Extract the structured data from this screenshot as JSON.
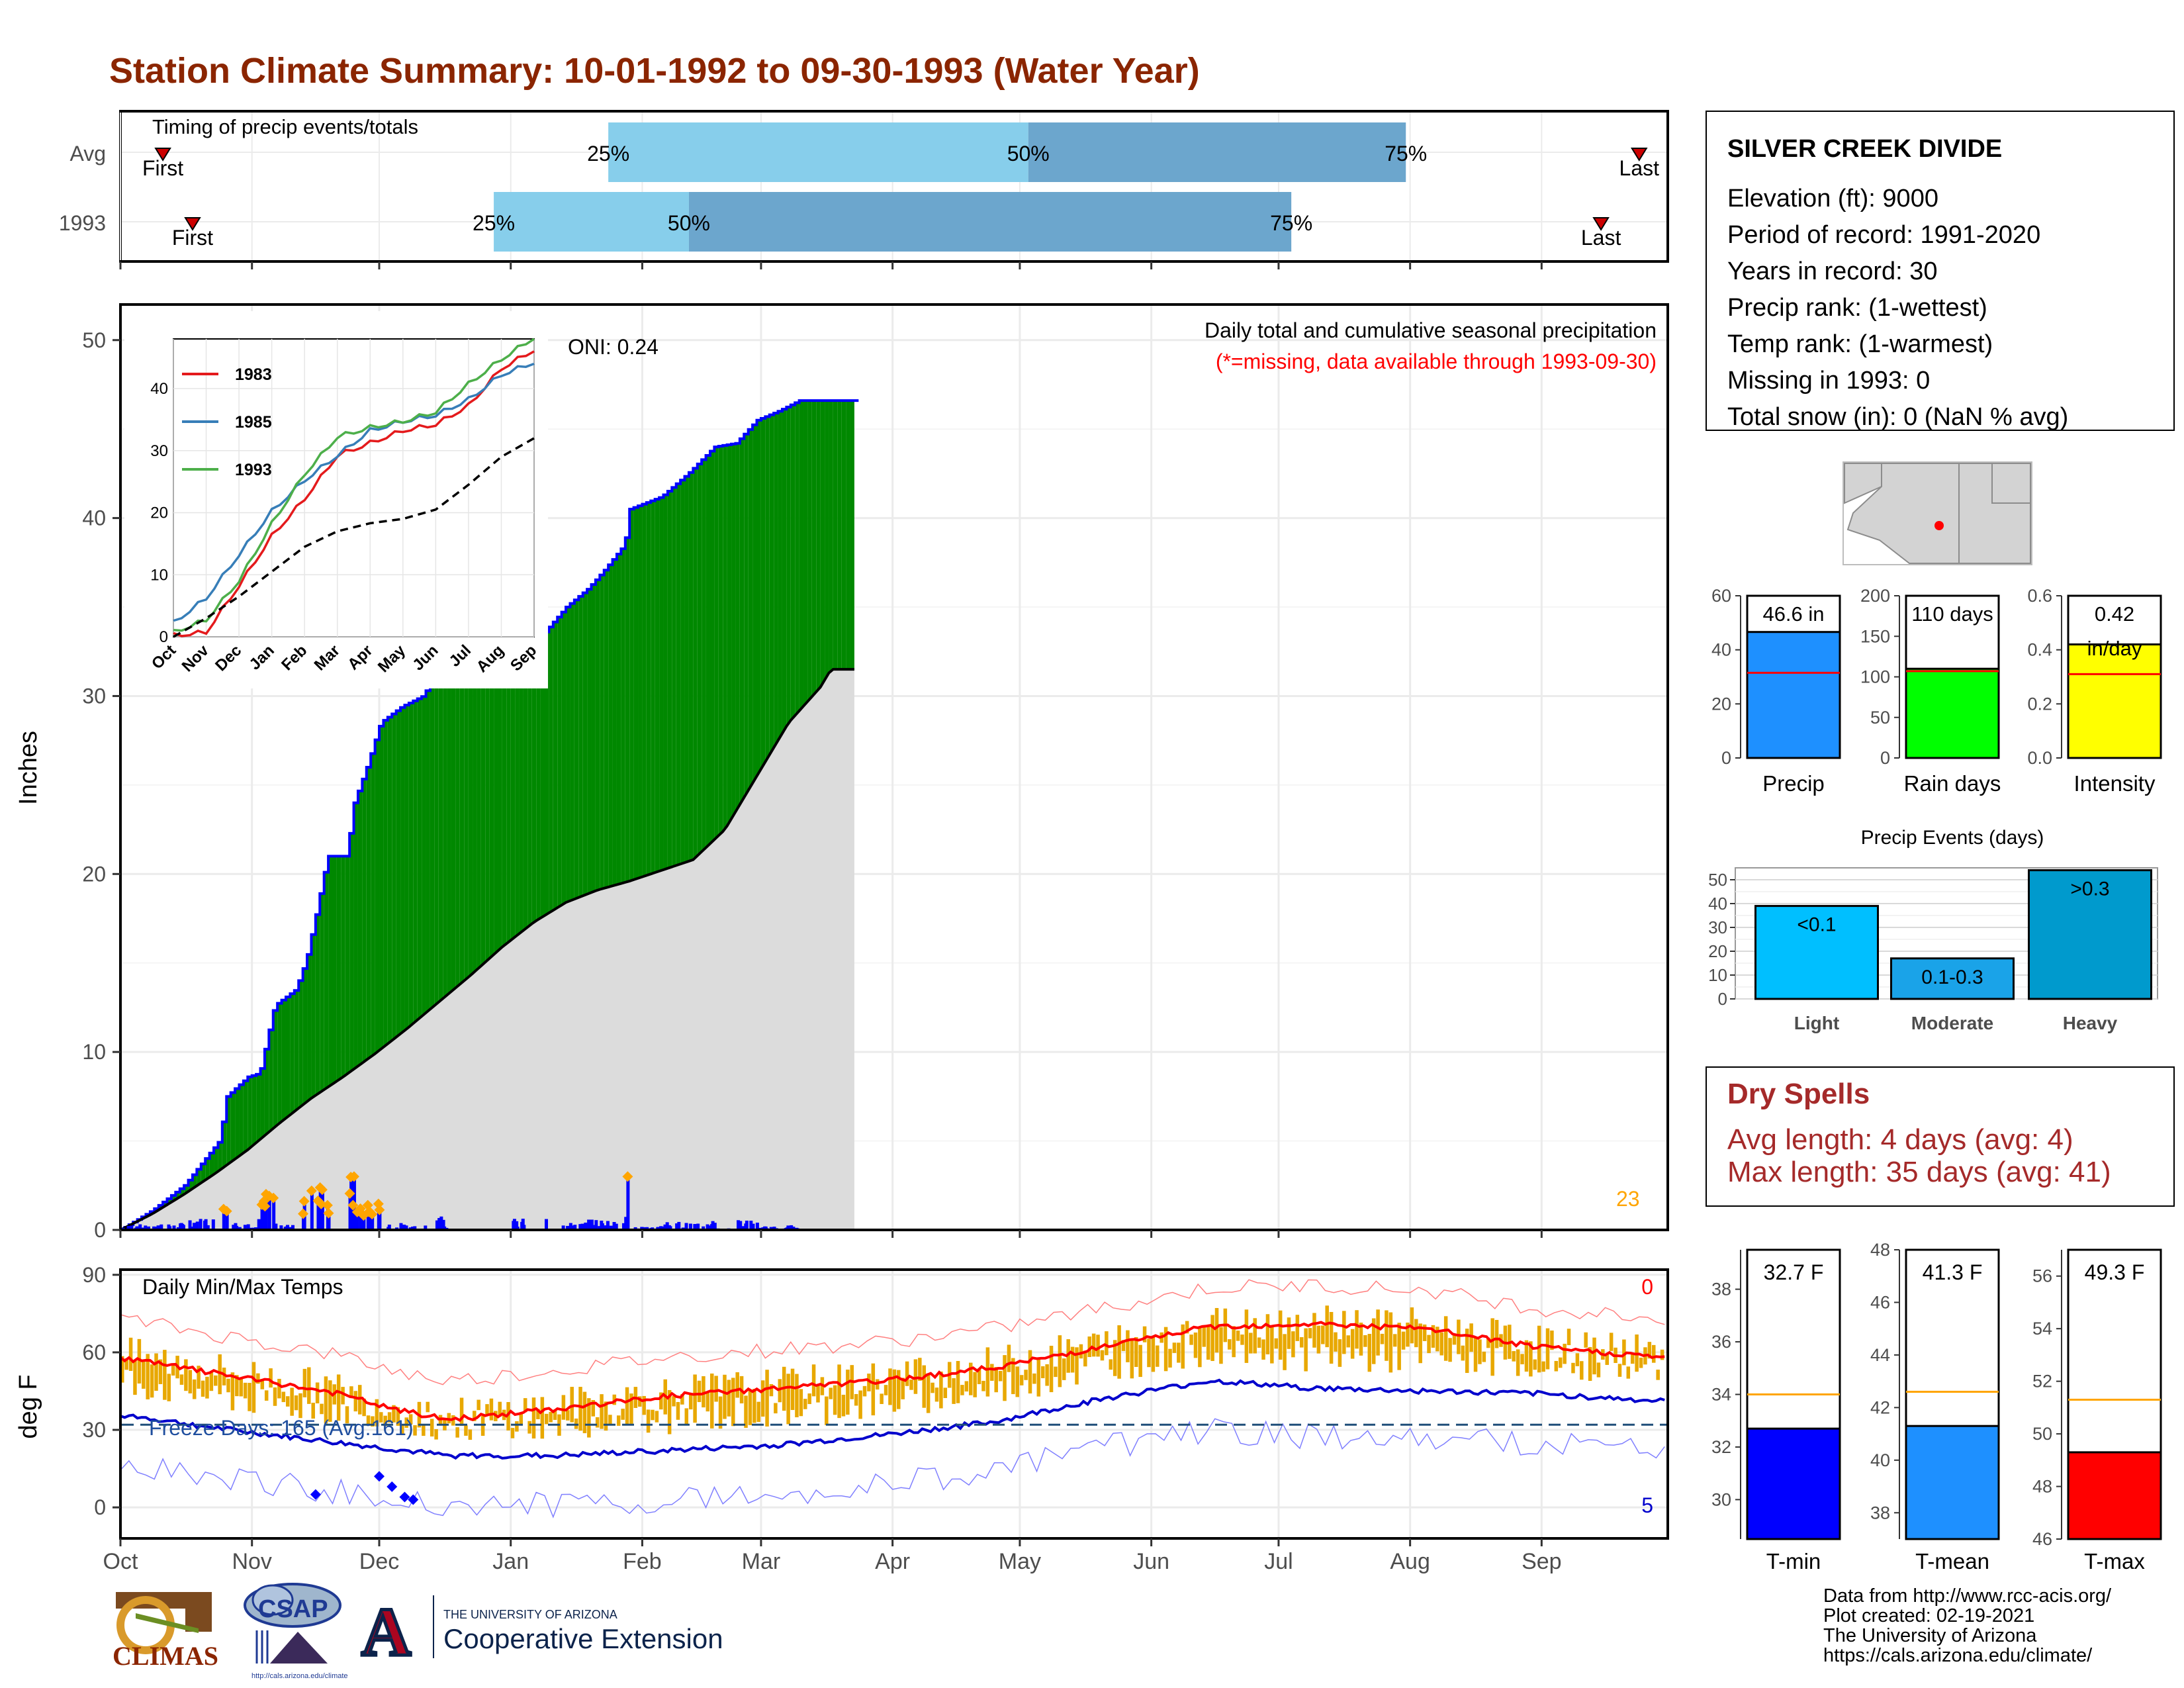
{
  "title": "Station Climate Summary: 10-01-1992 to 09-30-1993 (Water Year)",
  "colors": {
    "title": "#8B2500",
    "above_normal_precip": "#008800",
    "below_normal_precip": "#8B5A00",
    "normal_cumulative": "#DCDCDC",
    "daily_precip_bar": "#0000FF",
    "big_event_marker": "#FFA500",
    "temp_range_bar": "#E8A800",
    "normal_max_line": "#FF0000",
    "normal_min_line": "#0000CC",
    "timing_light": "#87CEEB",
    "timing_dark": "#6CA6CD"
  },
  "months": [
    "Oct",
    "Nov",
    "Dec",
    "Jan",
    "Feb",
    "Mar",
    "Apr",
    "May",
    "Jun",
    "Jul",
    "Aug",
    "Sep"
  ],
  "timing": {
    "title": "Timing of precip events/totals",
    "rows": [
      {
        "label": "Avg",
        "first_label": "First",
        "last_label": "Last",
        "first_day": 10,
        "last_day": 358,
        "p25_day": 115,
        "p50_day": 214,
        "p75_day": 303,
        "p25_label": "25%",
        "p50_label": "50%",
        "p75_label": "75%"
      },
      {
        "label": "1993",
        "first_label": "First",
        "last_label": "Last",
        "first_day": 17,
        "last_day": 349,
        "p25_day": 88,
        "p50_day": 134,
        "p75_day": 276,
        "p25_label": "25%",
        "p50_label": "50%",
        "p75_label": "75%"
      }
    ]
  },
  "precip_panel": {
    "ylabel": "Inches",
    "yticks": [
      "0",
      "10",
      "20",
      "30",
      "40",
      "50"
    ],
    "title": "Daily total and cumulative seasonal precipitation",
    "subtitle": "(*=missing, data available through 1993-09-30)",
    "oni": "ONI: 0.24",
    "big_event_count": "23"
  },
  "temp_panel": {
    "ylabel": "deg F",
    "yticks": [
      "0",
      "30",
      "60",
      "90"
    ],
    "title": "Daily Min/Max Temps",
    "freeze_days": "Freeze Days: 165 (Avg:161)",
    "count_high": "0",
    "count_low": "5"
  },
  "chart_data": [
    {
      "type": "area",
      "name": "cumulative_precip",
      "x_unit": "day of water year (0 = Oct 1)",
      "observed_cumulative": [
        [
          0,
          0
        ],
        [
          30,
          1.1
        ],
        [
          60,
          2.5
        ],
        [
          64,
          2.8
        ],
        [
          93,
          5.0
        ],
        [
          100,
          7.5
        ],
        [
          120,
          8.6
        ],
        [
          131,
          8.8
        ],
        [
          145,
          12.6
        ],
        [
          165,
          13.5
        ],
        [
          175,
          15.2
        ],
        [
          185,
          18.0
        ],
        [
          195,
          21.0
        ],
        [
          213,
          21.0
        ],
        [
          220,
          24.0
        ],
        [
          232,
          26.0
        ],
        [
          245,
          28.5
        ],
        [
          265,
          29.4
        ],
        [
          285,
          30.0
        ],
        [
          300,
          31.5
        ],
        [
          305,
          32.2
        ],
        [
          339,
          32.3
        ],
        [
          365,
          32.4
        ],
        [
          380,
          33.5
        ],
        [
          400,
          33.6
        ],
        [
          420,
          35.0
        ],
        [
          440,
          36.0
        ],
        [
          455,
          37.0
        ],
        [
          475,
          38.5
        ],
        [
          480,
          40.5
        ],
        [
          510,
          41.2
        ],
        [
          535,
          42.5
        ],
        [
          560,
          44.0
        ],
        [
          580,
          44.2
        ],
        [
          600,
          45.5
        ],
        [
          620,
          46.0
        ],
        [
          640,
          46.6
        ],
        [
          670,
          46.6
        ]
      ],
      "normal_cumulative": [
        [
          0,
          0
        ],
        [
          30,
          0.9
        ],
        [
          60,
          2.0
        ],
        [
          90,
          3.2
        ],
        [
          120,
          4.5
        ],
        [
          150,
          6.0
        ],
        [
          180,
          7.4
        ],
        [
          210,
          8.6
        ],
        [
          240,
          9.9
        ],
        [
          270,
          11.3
        ],
        [
          300,
          12.8
        ],
        [
          330,
          14.3
        ],
        [
          360,
          15.9
        ],
        [
          390,
          17.3
        ],
        [
          420,
          18.4
        ],
        [
          450,
          19.1
        ],
        [
          480,
          19.6
        ],
        [
          510,
          20.2
        ],
        [
          540,
          20.8
        ],
        [
          570,
          22.5
        ],
        [
          600,
          25.5
        ],
        [
          630,
          28.5
        ],
        [
          660,
          30.5
        ],
        [
          670,
          31.5
        ]
      ],
      "ylim": [
        0,
        52
      ]
    },
    {
      "type": "line",
      "name": "inset_cumulative_comparison",
      "categories": [
        "Oct",
        "Nov",
        "Dec",
        "Jan",
        "Feb",
        "Mar",
        "Apr",
        "May",
        "Jun",
        "Jul",
        "Aug",
        "Sep"
      ],
      "series": [
        {
          "name": "1983",
          "color": "#E41A1C",
          "values": [
            0.0,
            0.5,
            8.0,
            16.0,
            22.0,
            29.0,
            31.0,
            33.0,
            34.0,
            37.0,
            43.0,
            46.0
          ]
        },
        {
          "name": "1985",
          "color": "#377EB8",
          "values": [
            2.0,
            6.0,
            13.0,
            20.0,
            25.0,
            29.0,
            33.0,
            34.5,
            35.5,
            38.0,
            42.0,
            44.0
          ]
        },
        {
          "name": "1993",
          "color": "#4DAF4A",
          "values": [
            0.5,
            2.5,
            8.8,
            18.0,
            26.0,
            32.0,
            33.5,
            34.5,
            36.0,
            40.5,
            44.5,
            48.0
          ]
        },
        {
          "name": "",
          "color": "#000000",
          "values": [
            0.0,
            3.0,
            6.5,
            10.5,
            14.5,
            17.0,
            18.3,
            19.0,
            20.5,
            24.5,
            29.0,
            32.0
          ]
        }
      ],
      "ylim": [
        0,
        48
      ],
      "yticks": [
        "0",
        "10",
        "20",
        "30",
        "40"
      ]
    },
    {
      "type": "bar",
      "name": "station_stats",
      "categories": [
        "Precip",
        "Rain days",
        "Intensity"
      ],
      "values": [
        46.6,
        110,
        0.42
      ],
      "averages": [
        31.5,
        107,
        0.31
      ],
      "value_labels": [
        "46.6 in",
        "110 days",
        "0.42\nin/day"
      ],
      "ylims": [
        [
          0,
          60
        ],
        [
          0,
          200
        ],
        [
          0,
          0.6
        ]
      ],
      "yticks": [
        [
          "0",
          "20",
          "40",
          "60"
        ],
        [
          "0",
          "50",
          "100",
          "150",
          "200"
        ],
        [
          "0.0",
          "0.2",
          "0.4",
          "0.6"
        ]
      ],
      "colors": [
        "#1E90FF",
        "#00FF00",
        "#FFFF00"
      ]
    },
    {
      "type": "bar",
      "name": "precip_events",
      "title": "Precip Events (days)",
      "categories": [
        "Light",
        "Moderate",
        "Heavy"
      ],
      "bar_labels": [
        "<0.1",
        "0.1-0.3",
        ">0.3"
      ],
      "values": [
        39,
        17,
        54
      ],
      "ylim": [
        0,
        55
      ],
      "yticks": [
        "0",
        "10",
        "20",
        "30",
        "40",
        "50"
      ],
      "colors": [
        "#00BFFF",
        "#1AA3E8",
        "#009ACD"
      ]
    },
    {
      "type": "bar",
      "name": "temperature_means",
      "categories": [
        "T-min",
        "T-mean",
        "T-max"
      ],
      "values": [
        32.7,
        41.3,
        49.3
      ],
      "value_labels": [
        "32.7 F",
        "41.3 F",
        "49.3 F"
      ],
      "averages": [
        34.0,
        42.6,
        51.3
      ],
      "ylims": [
        [
          28.5,
          39.5
        ],
        [
          37,
          48
        ],
        [
          46,
          57
        ]
      ],
      "yticks": [
        [
          "30",
          "32",
          "34",
          "36",
          "38"
        ],
        [
          "38",
          "40",
          "42",
          "44",
          "46",
          "48"
        ],
        [
          "46",
          "48",
          "50",
          "52",
          "54",
          "56"
        ]
      ],
      "colors": [
        "#0000FF",
        "#1E90FF",
        "#FF0000"
      ]
    },
    {
      "type": "line",
      "name": "daily_temps",
      "x_unit": "day of water year",
      "normal_max": [
        [
          0,
          58
        ],
        [
          30,
          51
        ],
        [
          60,
          44
        ],
        [
          75,
          38
        ],
        [
          90,
          34
        ],
        [
          120,
          38
        ],
        [
          150,
          43
        ],
        [
          180,
          46
        ],
        [
          210,
          49
        ],
        [
          240,
          54
        ],
        [
          270,
          62
        ],
        [
          300,
          70
        ],
        [
          330,
          71
        ],
        [
          360,
          69
        ],
        [
          390,
          62
        ],
        [
          425,
          58
        ]
      ],
      "normal_min": [
        [
          0,
          36
        ],
        [
          30,
          30
        ],
        [
          60,
          25
        ],
        [
          90,
          20
        ],
        [
          120,
          20
        ],
        [
          150,
          22
        ],
        [
          180,
          24
        ],
        [
          210,
          28
        ],
        [
          240,
          33
        ],
        [
          270,
          42
        ],
        [
          300,
          49
        ],
        [
          330,
          46
        ],
        [
          360,
          45
        ],
        [
          390,
          44
        ],
        [
          425,
          41
        ]
      ],
      "ylim": [
        -12,
        92
      ],
      "freeze_line": 32
    }
  ],
  "station": {
    "name": "SILVER CREEK DIVIDE",
    "lines": [
      "Elevation (ft): 9000",
      "Period of record: 1991-2020",
      "Years in record: 30",
      "Precip rank:  (1-wettest)",
      "Temp rank:  (1-warmest)",
      "Missing in 1993: 0",
      "Total snow (in): 0 (NaN % avg)"
    ]
  },
  "dry_spells": {
    "title": "Dry Spells",
    "avg_line": "Avg length: 4 days (avg: 4)",
    "max_line": "Max length: 35 days (avg: 41)"
  },
  "footer": {
    "lines": [
      "Data from http://www.rcc-acis.org/",
      "Plot created: 02-19-2021",
      "The University of Arizona",
      "https://cals.arizona.edu/climate/"
    ]
  },
  "logos": {
    "climas": "CLIMAS",
    "csap": "CSAP",
    "csap_url": "http://cals.arizona.edu/climate",
    "ua_small": "THE UNIVERSITY OF ARIZONA",
    "ua_big": "Cooperative Extension",
    "ua_letter": "A"
  }
}
